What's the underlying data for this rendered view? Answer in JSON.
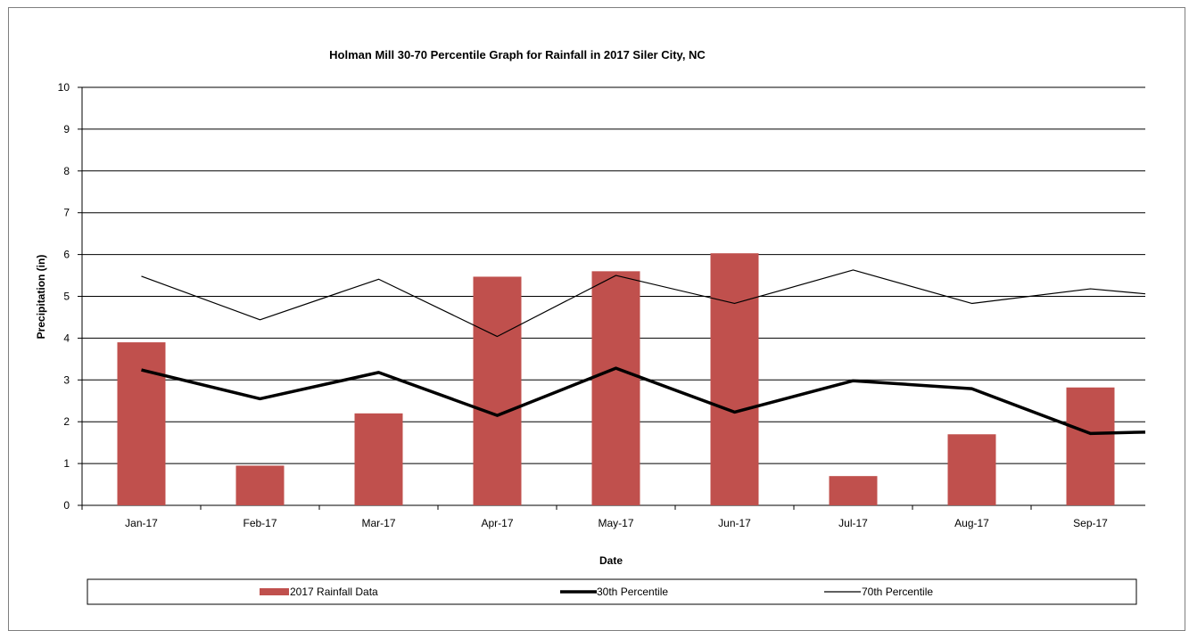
{
  "chart_data": {
    "type": "bar",
    "title": "Holman Mill 30-70 Percentile Graph for Rainfall in 2017 Siler City, NC",
    "xlabel": "Date",
    "ylabel": "Precipitation (in)",
    "ylim": [
      0,
      10
    ],
    "yticks": [
      "0",
      "1",
      "2",
      "3",
      "4",
      "5",
      "6",
      "7",
      "8",
      "9",
      "10"
    ],
    "grid": true,
    "legend_position": "bottom",
    "categories": [
      "Jan-17",
      "Feb-17",
      "Mar-17",
      "Apr-17",
      "May-17",
      "Jun-17",
      "Jul-17",
      "Aug-17",
      "Sep-17"
    ],
    "series": [
      {
        "name": "2017 Rainfall Data",
        "type": "bar",
        "color": "#c0504d",
        "values": [
          3.9,
          0.95,
          2.2,
          5.47,
          5.6,
          6.03,
          0.7,
          1.7,
          2.82
        ]
      },
      {
        "name": "30th Percentile",
        "type": "line",
        "color": "#000000",
        "stroke": "thick",
        "values": [
          3.24,
          2.55,
          3.18,
          2.15,
          3.28,
          2.23,
          2.98,
          2.79,
          1.72
        ],
        "continues_to": 1.79
      },
      {
        "name": "70th Percentile",
        "type": "line",
        "color": "#000000",
        "stroke": "thin",
        "values": [
          5.48,
          4.44,
          5.41,
          4.04,
          5.5,
          4.83,
          5.63,
          4.83,
          5.18
        ],
        "continues_to": 4.92
      }
    ]
  }
}
